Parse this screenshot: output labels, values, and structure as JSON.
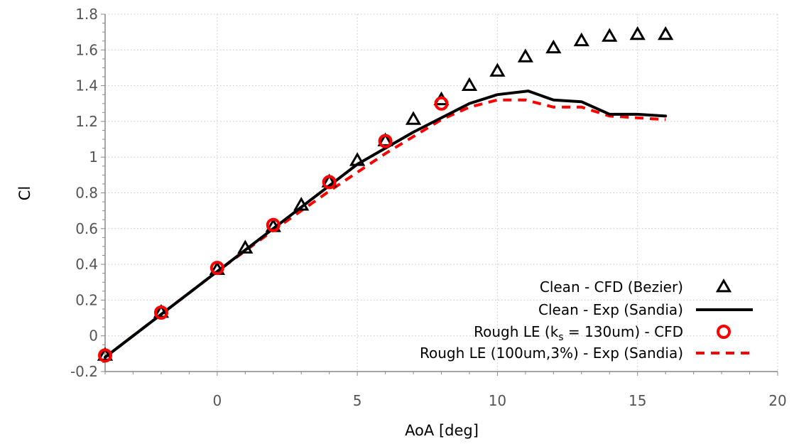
{
  "chart_data": {
    "type": "line",
    "title": "",
    "xlabel": "AoA [deg]",
    "ylabel": "Cl",
    "xlim": [
      -4,
      20
    ],
    "ylim": [
      -0.2,
      1.8
    ],
    "xticks": [
      0,
      5,
      10,
      15,
      20
    ],
    "xtick_labels": [
      "0",
      "5",
      "10",
      "15",
      "20"
    ],
    "yticks": [
      -0.2,
      0,
      0.2,
      0.4,
      0.6,
      0.8,
      1,
      1.2,
      1.4,
      1.6,
      1.8
    ],
    "ytick_labels": [
      "-0.2",
      "0",
      "0.2",
      "0.4",
      "0.6",
      "0.8",
      "1",
      "1.2",
      "1.4",
      "1.6",
      "1.8"
    ],
    "grid": true,
    "legend_position": "bottom-right",
    "series": [
      {
        "name": "Clean - CFD (Bezier)",
        "style": "triangle-markers",
        "color": "#000000",
        "x": [
          -4,
          -2,
          0,
          1,
          2,
          3,
          4,
          5,
          6,
          7,
          8,
          9,
          10,
          11,
          12,
          13,
          14,
          15,
          16
        ],
        "y": [
          -0.11,
          0.13,
          0.37,
          0.49,
          0.61,
          0.73,
          0.86,
          0.98,
          1.09,
          1.21,
          1.32,
          1.4,
          1.48,
          1.56,
          1.61,
          1.65,
          1.675,
          1.685,
          1.685
        ]
      },
      {
        "name": "Clean - Exp (Sandia)",
        "style": "solid-line",
        "color": "#000000",
        "x": [
          -4,
          -2,
          0,
          1,
          2,
          3,
          4,
          5,
          6,
          7,
          8,
          9,
          10,
          11.1,
          12,
          13,
          14,
          15,
          16
        ],
        "y": [
          -0.12,
          0.12,
          0.36,
          0.48,
          0.6,
          0.72,
          0.84,
          0.96,
          1.05,
          1.14,
          1.22,
          1.3,
          1.35,
          1.37,
          1.32,
          1.31,
          1.24,
          1.24,
          1.23
        ]
      },
      {
        "name": "Rough LE (k",
        "name_subscript": "s",
        "name_rest": " = 130um)  - CFD",
        "style": "circle-markers",
        "color": "#ff0000",
        "x": [
          -4,
          -2,
          0,
          2,
          4,
          6,
          8
        ],
        "y": [
          -0.11,
          0.13,
          0.38,
          0.62,
          0.86,
          1.09,
          1.3
        ]
      },
      {
        "name": "Rough LE (100um,3%) - Exp (Sandia)",
        "style": "dashed-line",
        "color": "#ff0000",
        "x": [
          -4,
          -2,
          0,
          2,
          4,
          6,
          8,
          9,
          10,
          11,
          12,
          13,
          14,
          15,
          16
        ],
        "y": [
          -0.12,
          0.12,
          0.36,
          0.59,
          0.81,
          1.02,
          1.21,
          1.28,
          1.32,
          1.32,
          1.28,
          1.28,
          1.23,
          1.22,
          1.21
        ]
      }
    ]
  }
}
